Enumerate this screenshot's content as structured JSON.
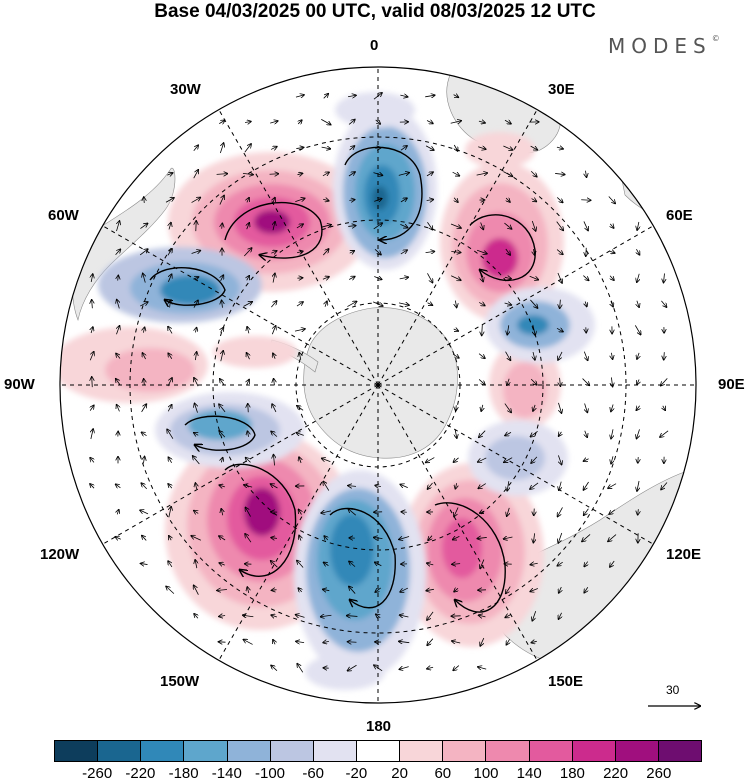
{
  "title": "Base 04/03/2025 00 UTC, valid 08/03/2025 12 UTC",
  "brand": "MODES",
  "brand_mark": "©",
  "longitude_labels": {
    "l0": "0",
    "l30e": "30E",
    "l60e": "60E",
    "l90e": "90E",
    "l120e": "120E",
    "l150e": "150E",
    "l180": "180",
    "l150w": "150W",
    "l120w": "120W",
    "l90w": "90W",
    "l60w": "60W",
    "l30w": "30W"
  },
  "reference_vector": {
    "label": "30"
  },
  "colorbar": {
    "colors": [
      "#0d3d5c",
      "#1a6690",
      "#3088b8",
      "#5ea6cc",
      "#8fb3d9",
      "#bcc6e2",
      "#e2e2f1",
      "#ffffff",
      "#f8d6d9",
      "#f4b4c2",
      "#ee89ae",
      "#e35a9e",
      "#cc2b8d",
      "#a00f7e",
      "#6e0d70"
    ],
    "ticks": [
      "-260",
      "-220",
      "-180",
      "-140",
      "-100",
      "-60",
      "-20",
      "20",
      "60",
      "100",
      "140",
      "180",
      "220",
      "260"
    ]
  }
}
